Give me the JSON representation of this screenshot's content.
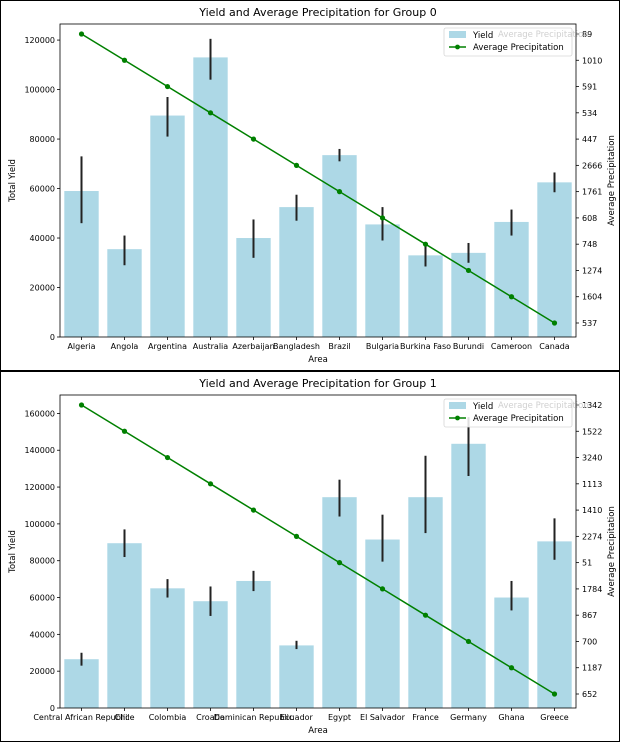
{
  "colors": {
    "bar": "#add8e6",
    "error_bar": "#222222",
    "line": "#008000",
    "legend_ghost": "#d0d0d0"
  },
  "chart_data": [
    {
      "type": "bar",
      "title": "Yield and Average Precipitation for Group 0",
      "xlabel": "Area",
      "ylabel": "Total Yield",
      "y2label": "Average Precipitation",
      "categories": [
        "Algeria",
        "Angola",
        "Argentina",
        "Australia",
        "Azerbaijan",
        "Bangladesh",
        "Brazil",
        "Bulgaria",
        "Burkina Faso",
        "Burundi",
        "Cameroon",
        "Canada"
      ],
      "values": [
        59000,
        35500,
        89500,
        113000,
        40000,
        52500,
        73500,
        45500,
        33000,
        34000,
        46500,
        62500
      ],
      "error_low": [
        46000,
        29000,
        81000,
        104000,
        32000,
        47000,
        71000,
        39000,
        28500,
        30000,
        41000,
        58500
      ],
      "error_high": [
        73000,
        41000,
        97000,
        120500,
        47500,
        57500,
        76000,
        52500,
        37000,
        38000,
        51500,
        66500
      ],
      "ylim": [
        0,
        126500
      ],
      "yticks": [
        0,
        20000,
        40000,
        60000,
        80000,
        100000,
        120000
      ],
      "legend": [
        "Yield",
        "Average Precipitation"
      ],
      "legend_ghost": "Average Precipitation",
      "legend_position": "top-right",
      "secondary_series": {
        "name": "Average Precipitation",
        "type": "line",
        "tick_labels": [
          "89",
          "1010",
          "591",
          "534",
          "447",
          "2666",
          "1761",
          "608",
          "748",
          "1274",
          "1604",
          "537"
        ],
        "values": [
          "89",
          "1010",
          "591",
          "534",
          "447",
          "2666",
          "1761",
          "608",
          "748",
          "1274",
          "1604",
          "537"
        ]
      }
    },
    {
      "type": "bar",
      "title": "Yield and Average Precipitation for Group 1",
      "xlabel": "Area",
      "ylabel": "Total Yield",
      "y2label": "Average Precipitation",
      "categories": [
        "Central African Republic",
        "Chile",
        "Colombia",
        "Croatia",
        "Dominican Republic",
        "Ecuador",
        "Egypt",
        "El Salvador",
        "France",
        "Germany",
        "Ghana",
        "Greece"
      ],
      "values": [
        26500,
        89500,
        65000,
        58000,
        69000,
        34000,
        114500,
        91500,
        114500,
        143500,
        60000,
        90500
      ],
      "error_low": [
        23000,
        82000,
        60000,
        50000,
        63500,
        32000,
        104000,
        79500,
        95000,
        126000,
        53000,
        80500
      ],
      "error_high": [
        30000,
        97000,
        70000,
        66000,
        74500,
        36500,
        124000,
        105000,
        137000,
        158000,
        69000,
        103000
      ],
      "ylim": [
        0,
        170000
      ],
      "yticks": [
        0,
        20000,
        40000,
        60000,
        80000,
        100000,
        120000,
        140000,
        160000
      ],
      "legend": [
        "Yield",
        "Average Precipitation"
      ],
      "legend_ghost": "Average Precipitation",
      "legend_position": "top-right",
      "secondary_series": {
        "name": "Average Precipitation",
        "type": "line",
        "tick_labels": [
          "1342",
          "1522",
          "3240",
          "1113",
          "1410",
          "2274",
          "51",
          "1784",
          "867",
          "700",
          "1187",
          "652"
        ],
        "values": [
          "1342",
          "1522",
          "3240",
          "1113",
          "1410",
          "2274",
          "51",
          "1784",
          "867",
          "700",
          "1187",
          "652"
        ]
      }
    }
  ]
}
